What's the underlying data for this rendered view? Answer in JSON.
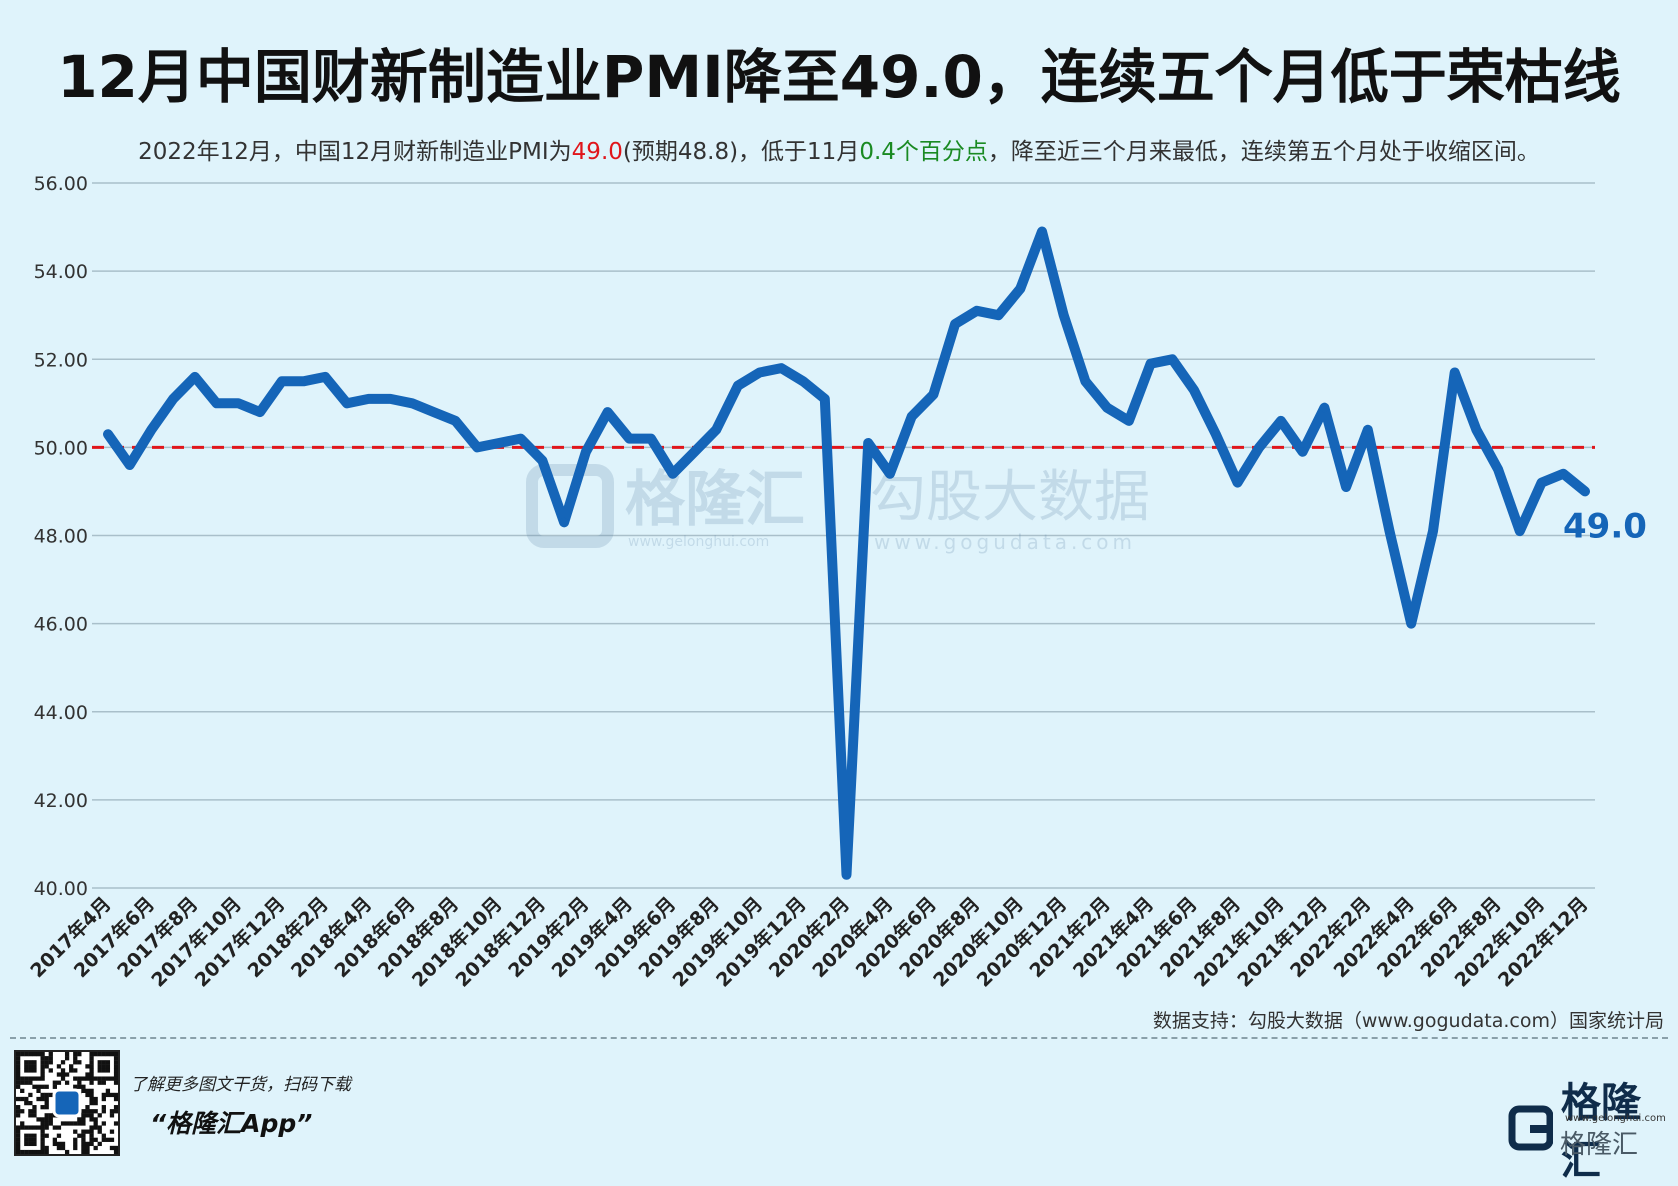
{
  "header": {
    "title": "12月中国财新制造业PMI降至49.0，连续五个月低于荣枯线",
    "subtitle_part1": "2022年12月，中国12月财新制造业PMI为",
    "subtitle_value": "49.0",
    "subtitle_part2": "(预期48.8)，低于11月",
    "subtitle_change": "0.4个百分点",
    "subtitle_part3": "，降至近三个月来最低，连续第五个月处于收缩区间。"
  },
  "watermark": {
    "brand": "格隆汇",
    "brand_url": "www.gelonghui.com",
    "data_brand": "勾股大数据",
    "data_url": "www.gogudata.com"
  },
  "chart_data": {
    "type": "line",
    "title": "12月中国财新制造业PMI降至49.0，连续五个月低于荣枯线",
    "xlabel": "",
    "ylabel": "",
    "ylim": [
      40,
      56
    ],
    "yticks": [
      "40.00",
      "42.00",
      "44.00",
      "46.00",
      "48.00",
      "50.00",
      "52.00",
      "54.00",
      "56.00"
    ],
    "grid": true,
    "reference_line": {
      "y": 50.0,
      "style": "dashed",
      "color": "#e0151b"
    },
    "end_label": "49.0",
    "tick_labels": [
      "2017年4月",
      "2017年6月",
      "2017年8月",
      "2017年10月",
      "2017年12月",
      "2018年2月",
      "2018年4月",
      "2018年6月",
      "2018年8月",
      "2018年10月",
      "2018年12月",
      "2019年2月",
      "2019年4月",
      "2019年6月",
      "2019年8月",
      "2019年10月",
      "2019年12月",
      "2020年2月",
      "2020年4月",
      "2020年6月",
      "2020年8月",
      "2020年10月",
      "2020年12月",
      "2021年2月",
      "2021年4月",
      "2021年6月",
      "2021年8月",
      "2021年10月",
      "2021年12月",
      "2022年2月",
      "2022年4月",
      "2022年6月",
      "2022年8月",
      "2022年10月",
      "2022年12月"
    ],
    "x": [
      "2017年4月",
      "2017年5月",
      "2017年6月",
      "2017年7月",
      "2017年8月",
      "2017年9月",
      "2017年10月",
      "2017年11月",
      "2017年12月",
      "2018年1月",
      "2018年2月",
      "2018年3月",
      "2018年4月",
      "2018年5月",
      "2018年6月",
      "2018年7月",
      "2018年8月",
      "2018年9月",
      "2018年10月",
      "2018年11月",
      "2018年12月",
      "2019年1月",
      "2019年2月",
      "2019年3月",
      "2019年4月",
      "2019年5月",
      "2019年6月",
      "2019年7月",
      "2019年8月",
      "2019年9月",
      "2019年10月",
      "2019年11月",
      "2019年12月",
      "2020年1月",
      "2020年2月",
      "2020年3月",
      "2020年4月",
      "2020年5月",
      "2020年6月",
      "2020年7月",
      "2020年8月",
      "2020年9月",
      "2020年10月",
      "2020年11月",
      "2020年12月",
      "2021年1月",
      "2021年2月",
      "2021年3月",
      "2021年4月",
      "2021年5月",
      "2021年6月",
      "2021年7月",
      "2021年8月",
      "2021年9月",
      "2021年10月",
      "2021年11月",
      "2021年12月",
      "2022年1月",
      "2022年2月",
      "2022年3月",
      "2022年4月",
      "2022年5月",
      "2022年6月",
      "2022年7月",
      "2022年8月",
      "2022年9月",
      "2022年10月",
      "2022年11月",
      "2022年12月"
    ],
    "series": [
      {
        "color": "#1565b8",
        "values": [
          50.3,
          49.6,
          50.4,
          51.1,
          51.6,
          51.0,
          51.0,
          50.8,
          51.5,
          51.5,
          51.6,
          51.0,
          51.1,
          51.1,
          51.0,
          50.8,
          50.6,
          50.0,
          50.1,
          50.2,
          49.7,
          48.3,
          49.9,
          50.8,
          50.2,
          50.2,
          49.4,
          49.9,
          50.4,
          51.4,
          51.7,
          51.8,
          51.5,
          51.1,
          40.3,
          50.1,
          49.4,
          50.7,
          51.2,
          52.8,
          53.1,
          53.0,
          53.6,
          54.9,
          53.0,
          51.5,
          50.9,
          50.6,
          51.9,
          52.0,
          51.3,
          50.3,
          49.2,
          50.0,
          50.6,
          49.9,
          50.9,
          49.1,
          50.4,
          48.1,
          46.0,
          48.1,
          51.7,
          50.4,
          49.5,
          48.1,
          49.2,
          49.4,
          49.0
        ]
      }
    ]
  },
  "footer": {
    "source": "数据支持：勾股大数据（www.gogudata.com）国家统计局",
    "promo": "了解更多图文干货，扫码下载",
    "app": "“格隆汇App”",
    "brand": "格隆汇",
    "brand_url": "www.gelonghui.com",
    "brand_small": "格隆汇"
  }
}
